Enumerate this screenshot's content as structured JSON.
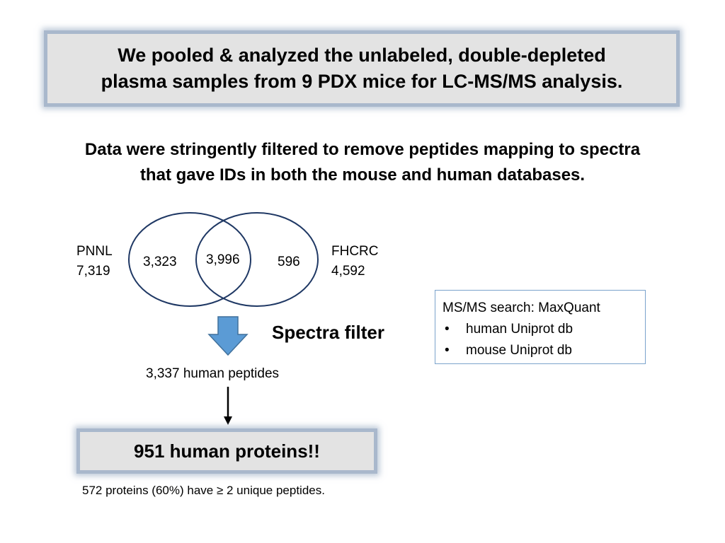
{
  "title": {
    "line1": "We pooled & analyzed the unlabeled, double-depleted",
    "line2": "plasma samples from 9 PDX mice for LC-MS/MS analysis."
  },
  "subtitle": {
    "line1": "Data were stringently filtered to remove peptides mapping to spectra",
    "line2": "that gave IDs in both the mouse and human databases."
  },
  "venn": {
    "left_set": {
      "name": "PNNL",
      "total": "7,319",
      "only": "3,323"
    },
    "right_set": {
      "name": "FHCRC",
      "total": "4,592",
      "only": "596"
    },
    "overlap": "3,996",
    "circle_color": "#1f3864"
  },
  "filter": {
    "label": "Spectra filter",
    "arrow_color": "#5b9bd5"
  },
  "search": {
    "heading": "MS/MS search: MaxQuant",
    "items": [
      "human Uniprot db",
      "mouse Uniprot db"
    ],
    "border_color": "#7ba3cc"
  },
  "peptides_label": "3,337 human peptides",
  "result_label": "951 human proteins!!",
  "footnote": "572 proteins (60%) have ≥ 2 unique peptides."
}
